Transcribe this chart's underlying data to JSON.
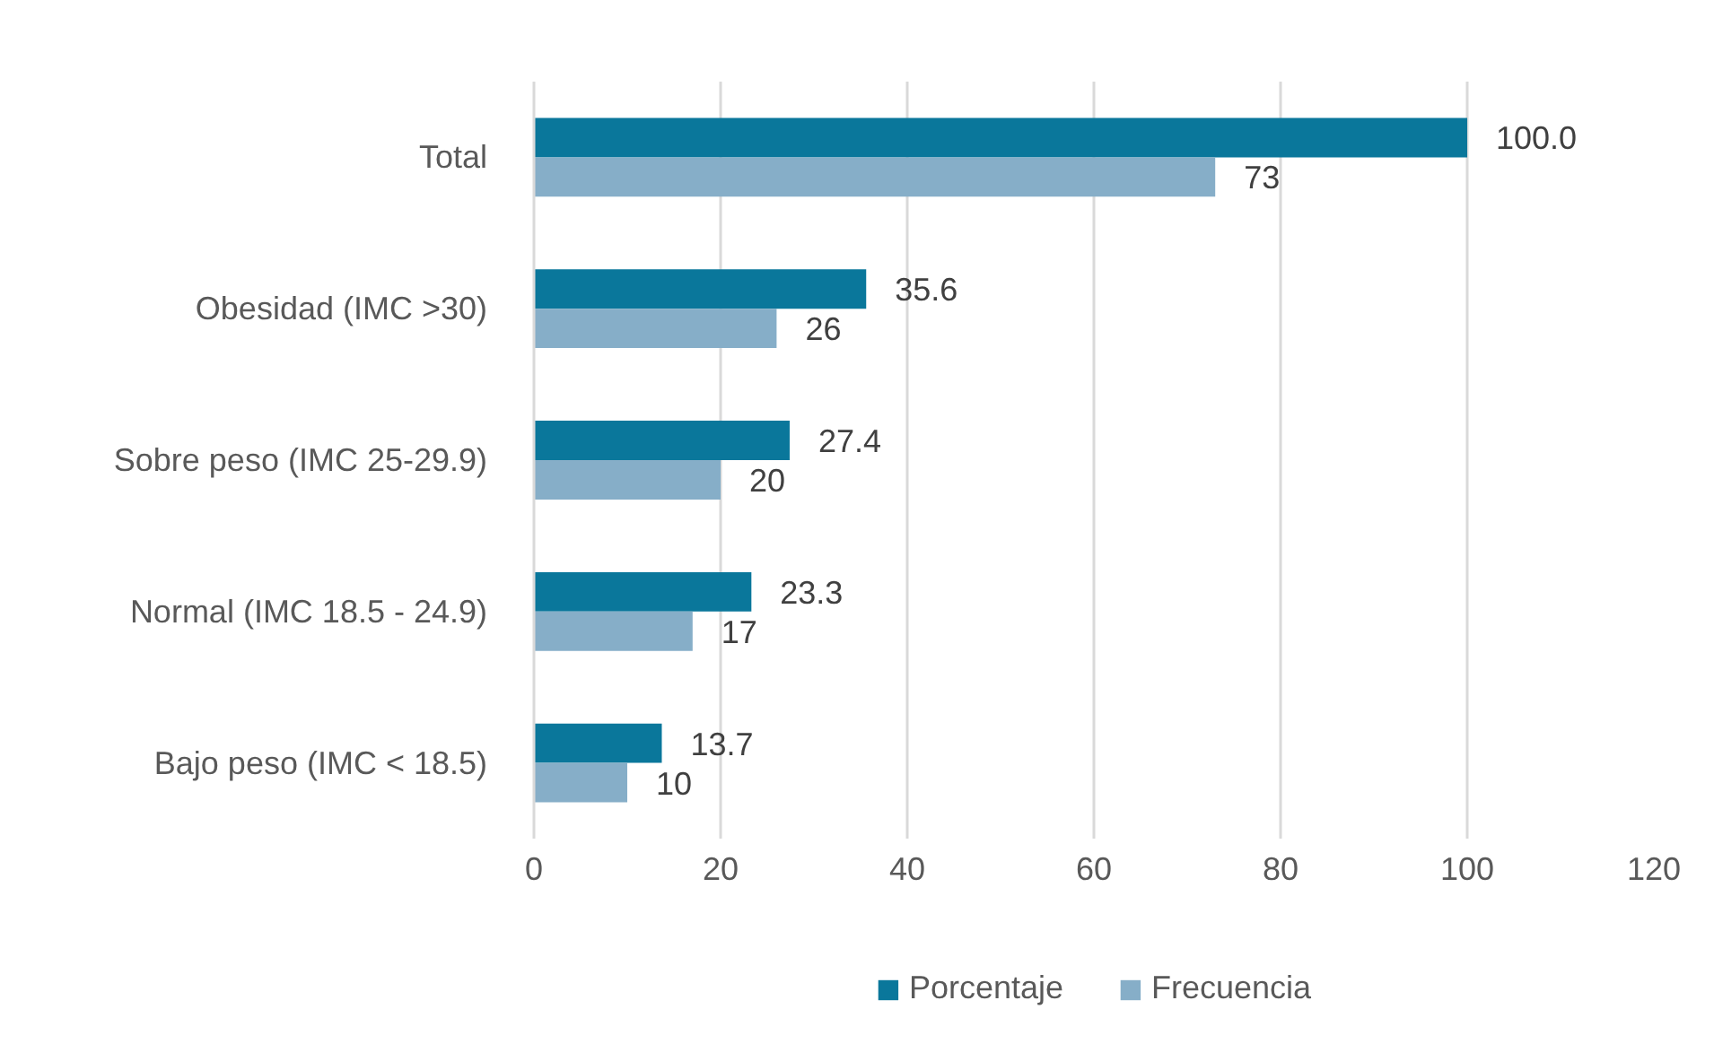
{
  "chart_data": {
    "type": "bar",
    "orientation": "horizontal",
    "categories": [
      "Total",
      "Obesidad (IMC >30)",
      "Sobre peso (IMC 25-29.9)",
      "Normal (IMC 18.5 - 24.9)",
      "Bajo peso (IMC < 18.5)"
    ],
    "series": [
      {
        "name": "Porcentaje",
        "color": "#0a779b",
        "values": [
          100.0,
          35.6,
          27.4,
          23.3,
          13.7
        ],
        "value_labels": [
          "100.0",
          "35.6",
          "27.4",
          "23.3",
          "13.7"
        ]
      },
      {
        "name": "Frecuencia",
        "color": "#86aec8",
        "values": [
          73,
          26,
          20,
          17,
          10
        ],
        "value_labels": [
          "73",
          "26",
          "20",
          "17",
          "10"
        ]
      }
    ],
    "xlim": [
      0,
      120
    ],
    "xticks": [
      0,
      20,
      40,
      60,
      80,
      100,
      120
    ],
    "grid": "x",
    "legend": "bottom"
  }
}
